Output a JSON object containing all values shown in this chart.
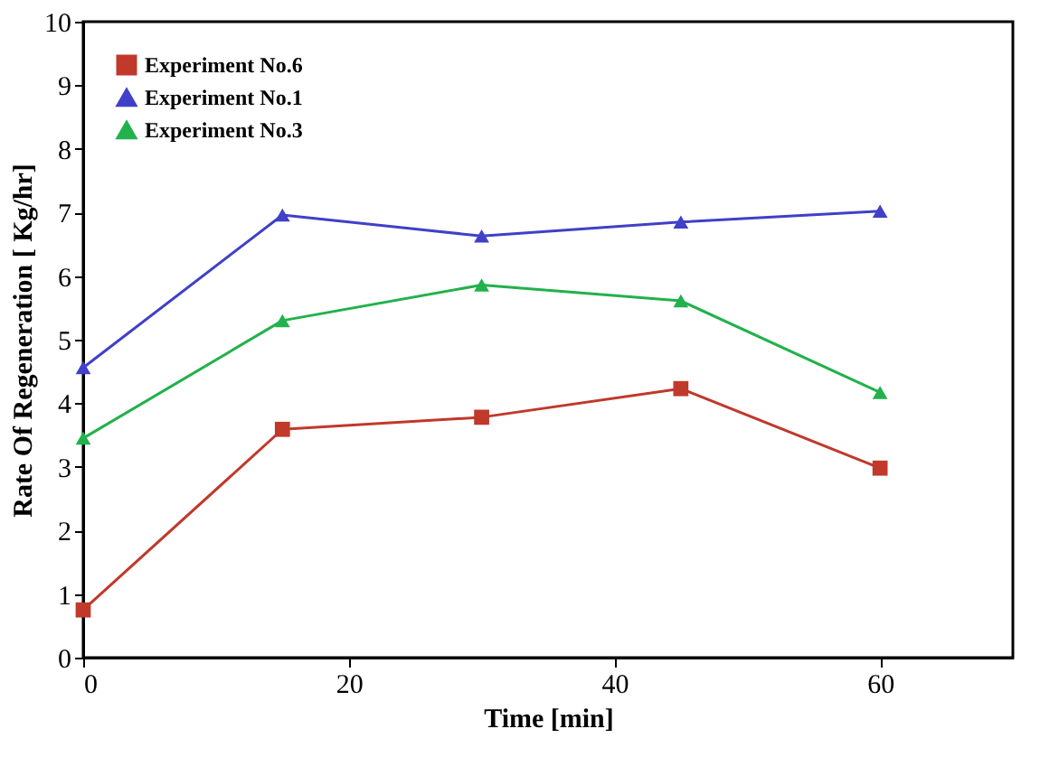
{
  "chart_data": {
    "type": "line",
    "xlabel": "Time [min]",
    "ylabel": "Rate Of Regeneration [ Kg/hr]",
    "x": [
      0,
      15,
      30,
      45,
      60
    ],
    "series": [
      {
        "name": "Experiment No.6",
        "color": "#c0392b",
        "marker": "square",
        "values": [
          0.75,
          3.59,
          3.78,
          4.23,
          2.98
        ]
      },
      {
        "name": "Experiment No.1",
        "color": "#4040c8",
        "marker": "triangle",
        "values": [
          4.56,
          6.96,
          6.63,
          6.85,
          7.02
        ]
      },
      {
        "name": "Experiment No.3",
        "color": "#22b14c",
        "marker": "triangle",
        "values": [
          3.45,
          5.3,
          5.86,
          5.61,
          4.17
        ]
      }
    ],
    "xlim": [
      0,
      70
    ],
    "xticks": [
      0,
      20,
      40,
      60
    ],
    "ylim": [
      0,
      10
    ],
    "yticks": [
      0,
      1,
      2,
      3,
      4,
      5,
      6,
      7,
      8,
      9,
      10
    ],
    "legend": "top left",
    "grid": false
  }
}
